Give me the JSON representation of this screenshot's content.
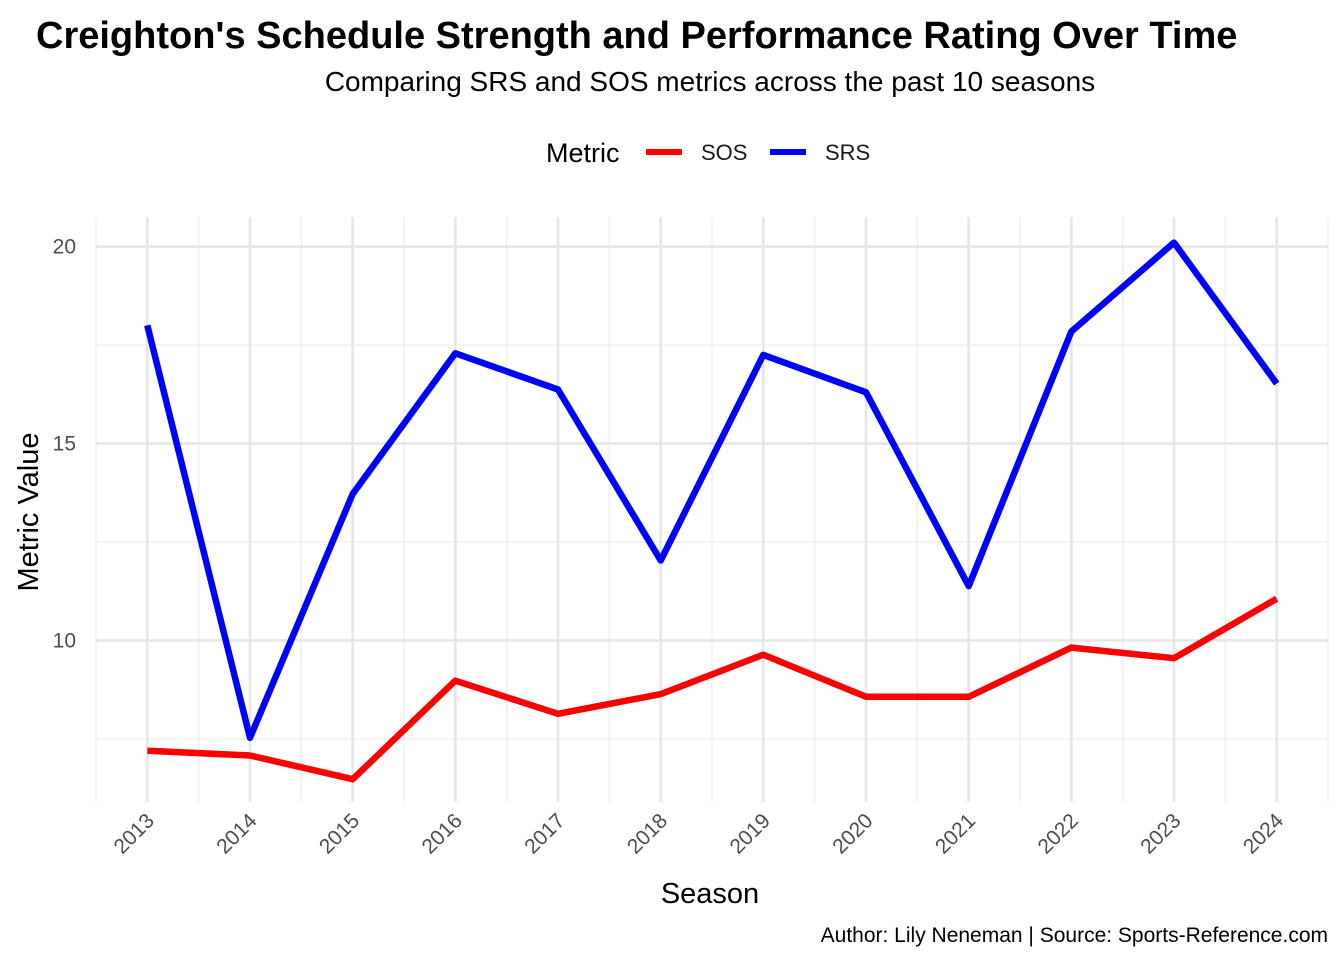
{
  "chart_data": {
    "type": "line",
    "title": "Creighton's Schedule Strength and Performance Rating Over Time",
    "subtitle": "Comparing SRS and SOS metrics across the past 10 seasons",
    "xlabel": "Season",
    "ylabel": "Metric Value",
    "caption": "Author: Lily Neneman | Source: Sports-Reference.com",
    "legend": {
      "title": "Metric",
      "position": "top"
    },
    "x": [
      2013,
      2014,
      2015,
      2016,
      2017,
      2018,
      2019,
      2020,
      2021,
      2022,
      2023,
      2024
    ],
    "xlim": [
      2012.5,
      2024.5
    ],
    "ylim": [
      5.9,
      20.75
    ],
    "y_ticks": [
      10,
      15,
      20
    ],
    "grid": true,
    "series": [
      {
        "name": "SOS",
        "color": "#ff0000",
        "values": [
          7.2,
          7.08,
          6.48,
          8.98,
          8.14,
          8.64,
          9.64,
          8.57,
          8.57,
          9.82,
          9.55,
          11.06
        ]
      },
      {
        "name": "SRS",
        "color": "#0000ff",
        "values": [
          18.0,
          7.53,
          13.72,
          17.29,
          16.37,
          12.03,
          17.25,
          16.3,
          11.38,
          17.84,
          20.1,
          16.52
        ]
      }
    ]
  }
}
